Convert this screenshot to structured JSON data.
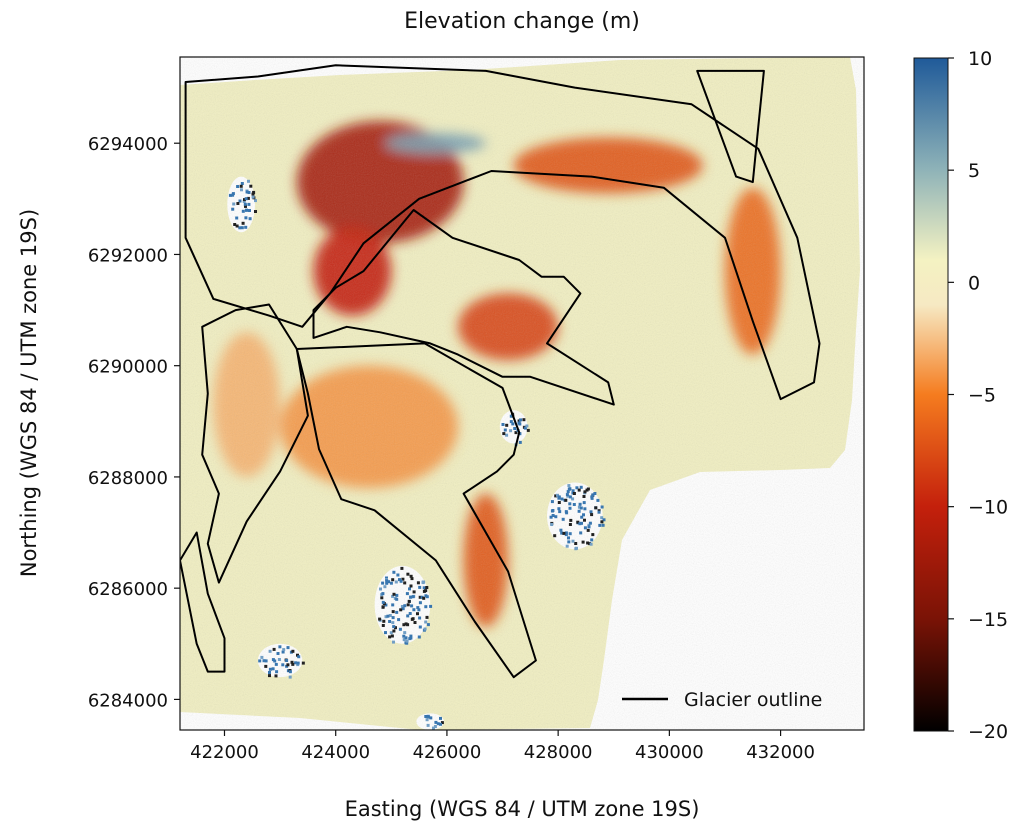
{
  "chart_data": {
    "type": "heatmap",
    "title": "Elevation change (m)",
    "xlabel": "Easting (WGS 84 / UTM zone 19S)",
    "ylabel": "Northing (WGS 84 / UTM zone 19S)",
    "xlim": [
      421200,
      433500
    ],
    "ylim": [
      6283450,
      6295550
    ],
    "xticks": [
      422000,
      424000,
      426000,
      428000,
      430000,
      432000
    ],
    "yticks": [
      6284000,
      6286000,
      6288000,
      6290000,
      6292000,
      6294000
    ],
    "xtick_labels": [
      "422000",
      "424000",
      "426000",
      "428000",
      "430000",
      "432000"
    ],
    "ytick_labels": [
      "6284000",
      "6286000",
      "6288000",
      "6290000",
      "6292000",
      "6294000"
    ],
    "colorbar": {
      "min": -20,
      "max": 10,
      "ticks": [
        10,
        5,
        0,
        -5,
        -10,
        -15,
        -20
      ],
      "tick_labels": [
        "10",
        "5",
        "0",
        "−5",
        "−10",
        "−15",
        "−20"
      ],
      "stops": [
        {
          "value": 10,
          "color": "#1f5a99"
        },
        {
          "value": 5,
          "color": "#8fb3b8"
        },
        {
          "value": 1,
          "color": "#f4f2c2"
        },
        {
          "value": -1,
          "color": "#f6e9c3"
        },
        {
          "value": -5,
          "color": "#f57c1f"
        },
        {
          "value": -10,
          "color": "#c4200c"
        },
        {
          "value": -15,
          "color": "#7a1306"
        },
        {
          "value": -20,
          "color": "#000000"
        }
      ]
    },
    "legend": {
      "label": "Glacier outline",
      "placement": "bottom-right",
      "color": "#000000"
    },
    "colors": {
      "stable_terrain": "#f1efc2",
      "no_data": "#ffffff",
      "outline": "#000000"
    },
    "glacier_outlines": [
      {
        "name": "",
        "points": [
          [
            421300,
            6295100
          ],
          [
            422600,
            6295200
          ],
          [
            424000,
            6295400
          ],
          [
            426700,
            6295300
          ],
          [
            428300,
            6295000
          ],
          [
            430400,
            6294700
          ],
          [
            431600,
            6293900
          ],
          [
            432300,
            6292300
          ],
          [
            432700,
            6290400
          ],
          [
            432600,
            6289700
          ],
          [
            432000,
            6289400
          ],
          [
            431500,
            6290800
          ],
          [
            431000,
            6292300
          ],
          [
            429900,
            6293200
          ],
          [
            428600,
            6293400
          ],
          [
            426800,
            6293500
          ],
          [
            425500,
            6293000
          ],
          [
            424500,
            6292200
          ],
          [
            423900,
            6291300
          ],
          [
            423400,
            6290700
          ],
          [
            422800,
            6290900
          ],
          [
            421800,
            6291200
          ],
          [
            421300,
            6292300
          ],
          [
            421300,
            6293600
          ]
        ]
      },
      {
        "name": "",
        "points": [
          [
            424500,
            6291700
          ],
          [
            425400,
            6292800
          ],
          [
            426100,
            6292300
          ],
          [
            427300,
            6291900
          ],
          [
            427700,
            6291600
          ],
          [
            428100,
            6291600
          ],
          [
            428400,
            6291300
          ],
          [
            427800,
            6290400
          ],
          [
            428900,
            6289700
          ],
          [
            429000,
            6289300
          ],
          [
            427500,
            6289800
          ],
          [
            427000,
            6289800
          ],
          [
            426200,
            6290200
          ],
          [
            425700,
            6290400
          ],
          [
            424800,
            6290600
          ],
          [
            424200,
            6290700
          ],
          [
            423600,
            6290500
          ],
          [
            423600,
            6291000
          ],
          [
            424000,
            6291400
          ]
        ]
      },
      {
        "name": "",
        "points": [
          [
            425600,
            6290400
          ],
          [
            427000,
            6289600
          ],
          [
            427300,
            6288800
          ],
          [
            427200,
            6288400
          ],
          [
            426900,
            6288100
          ],
          [
            426300,
            6287700
          ],
          [
            427100,
            6286300
          ],
          [
            427600,
            6284700
          ],
          [
            427200,
            6284400
          ],
          [
            426500,
            6285400
          ],
          [
            425800,
            6286500
          ],
          [
            424700,
            6287400
          ],
          [
            424100,
            6287600
          ],
          [
            423700,
            6288500
          ],
          [
            423500,
            6289500
          ],
          [
            423300,
            6290300
          ]
        ]
      },
      {
        "name": "",
        "points": [
          [
            423300,
            6290300
          ],
          [
            422800,
            6291100
          ],
          [
            422200,
            6291000
          ],
          [
            421600,
            6290700
          ],
          [
            421700,
            6289500
          ],
          [
            421600,
            6288400
          ],
          [
            421900,
            6287700
          ],
          [
            421700,
            6286800
          ],
          [
            421900,
            6286100
          ],
          [
            422400,
            6287200
          ],
          [
            423000,
            6288100
          ],
          [
            423500,
            6289100
          ]
        ]
      },
      {
        "name": "",
        "points": [
          [
            421500,
            6287000
          ],
          [
            421700,
            6285900
          ],
          [
            422000,
            6285100
          ],
          [
            422000,
            6284500
          ],
          [
            421700,
            6284500
          ],
          [
            421500,
            6285000
          ],
          [
            421200,
            6286500
          ]
        ]
      },
      {
        "name": "",
        "points": [
          [
            430500,
            6295300
          ],
          [
            431200,
            6293400
          ],
          [
            431500,
            6293300
          ],
          [
            431600,
            6294300
          ],
          [
            431700,
            6295300
          ]
        ]
      }
    ],
    "regions": [
      {
        "name": "",
        "mean_change_m": -12,
        "center": [
          424800,
          6293300
        ],
        "radius_m": [
          1500,
          1100
        ]
      },
      {
        "name": "",
        "mean_change_m": -10,
        "center": [
          424300,
          6291700
        ],
        "radius_m": [
          700,
          800
        ]
      },
      {
        "name": "",
        "mean_change_m": -7,
        "center": [
          428900,
          6293600
        ],
        "radius_m": [
          1700,
          500
        ]
      },
      {
        "name": "",
        "mean_change_m": -6,
        "center": [
          431500,
          6291700
        ],
        "radius_m": [
          500,
          1500
        ]
      },
      {
        "name": "",
        "mean_change_m": -8,
        "center": [
          427100,
          6290700
        ],
        "radius_m": [
          900,
          600
        ]
      },
      {
        "name": "",
        "mean_change_m": -4,
        "center": [
          424600,
          6288900
        ],
        "radius_m": [
          1600,
          1100
        ]
      },
      {
        "name": "",
        "mean_change_m": -7,
        "center": [
          426700,
          6286500
        ],
        "radius_m": [
          400,
          1200
        ]
      },
      {
        "name": "",
        "mean_change_m": -3,
        "center": [
          422400,
          6289300
        ],
        "radius_m": [
          600,
          1300
        ]
      },
      {
        "name": "",
        "mean_change_m": 6,
        "center": [
          425800,
          6294000
        ],
        "radius_m": [
          900,
          180
        ]
      }
    ],
    "no_data_patches": [
      {
        "center": [
          425200,
          6285700
        ],
        "radius_m": [
          500,
          700
        ]
      },
      {
        "center": [
          428300,
          6287300
        ],
        "radius_m": [
          500,
          600
        ]
      },
      {
        "center": [
          427200,
          6288900
        ],
        "radius_m": [
          250,
          300
        ]
      },
      {
        "center": [
          423000,
          6284700
        ],
        "radius_m": [
          400,
          300
        ]
      },
      {
        "center": [
          422300,
          6292900
        ],
        "radius_m": [
          250,
          500
        ]
      },
      {
        "center": [
          425700,
          6283600
        ],
        "radius_m": [
          250,
          150
        ]
      }
    ]
  }
}
